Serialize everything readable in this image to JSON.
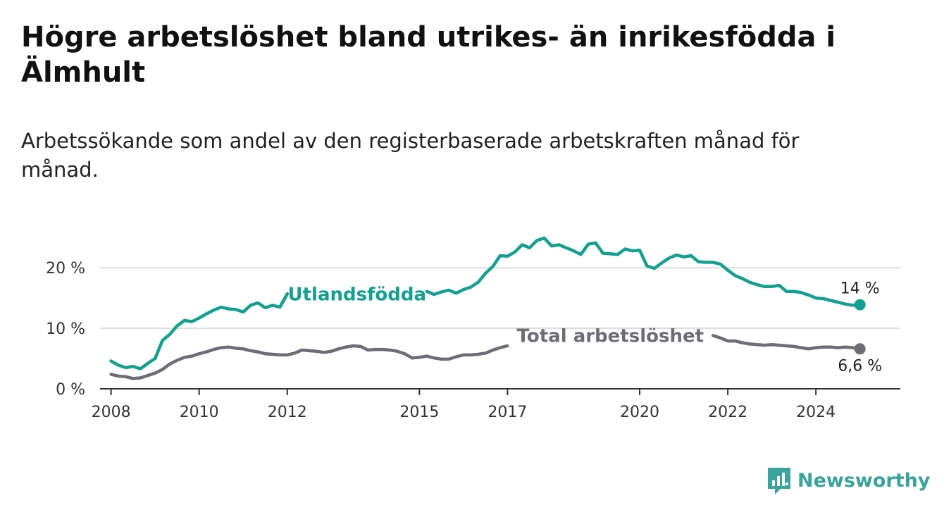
{
  "title": "Högre arbetslöshet bland utrikes- än inrikesfödda i Älmhult",
  "subtitle": "Arbetssökande som andel av den registerbaserade arbetskraften månad för månad.",
  "brand": "Newsworthy",
  "colors": {
    "utlandsfodda": "#12a090",
    "total": "#6e6c75",
    "axis": "#333333",
    "grid": "#dddddd",
    "brand": "#3aa39b"
  },
  "chart_data": {
    "type": "line",
    "x_ticks": [
      "2008",
      "2010",
      "2012",
      "2015",
      "2017",
      "2020",
      "2022",
      "2024"
    ],
    "y_ticks": [
      "0 %",
      "10 %",
      "20 %"
    ],
    "ylim": [
      0,
      27
    ],
    "xlim": [
      "2007-10",
      "2025-12"
    ],
    "grid": true,
    "series": [
      {
        "name": "Utlandsfödda",
        "end_label": "14 %",
        "points": [
          [
            "2008-01",
            4.6
          ],
          [
            "2008-03",
            3.9
          ],
          [
            "2008-05",
            3.5
          ],
          [
            "2008-07",
            3.7
          ],
          [
            "2008-09",
            3.3
          ],
          [
            "2008-11",
            4.2
          ],
          [
            "2009-01",
            5.0
          ],
          [
            "2009-03",
            8.0
          ],
          [
            "2009-05",
            9.0
          ],
          [
            "2009-07",
            10.4
          ],
          [
            "2009-09",
            11.3
          ],
          [
            "2009-11",
            11.1
          ],
          [
            "2010-01",
            11.7
          ],
          [
            "2010-03",
            12.4
          ],
          [
            "2010-05",
            13.0
          ],
          [
            "2010-07",
            13.5
          ],
          [
            "2010-09",
            13.2
          ],
          [
            "2010-11",
            13.1
          ],
          [
            "2011-01",
            12.7
          ],
          [
            "2011-03",
            13.8
          ],
          [
            "2011-05",
            14.2
          ],
          [
            "2011-07",
            13.4
          ],
          [
            "2011-09",
            13.8
          ],
          [
            "2011-11",
            13.5
          ],
          [
            "2012-01",
            15.7
          ],
          [
            "2015-03",
            16.1
          ],
          [
            "2015-05",
            15.6
          ],
          [
            "2015-07",
            16.0
          ],
          [
            "2015-09",
            16.3
          ],
          [
            "2015-11",
            15.8
          ],
          [
            "2016-01",
            16.4
          ],
          [
            "2016-03",
            16.8
          ],
          [
            "2016-05",
            17.6
          ],
          [
            "2016-07",
            19.1
          ],
          [
            "2016-09",
            20.2
          ],
          [
            "2016-11",
            22.0
          ],
          [
            "2017-01",
            21.9
          ],
          [
            "2017-03",
            22.6
          ],
          [
            "2017-05",
            23.8
          ],
          [
            "2017-07",
            23.3
          ],
          [
            "2017-09",
            24.5
          ],
          [
            "2017-11",
            24.9
          ],
          [
            "2018-01",
            23.6
          ],
          [
            "2018-03",
            23.8
          ],
          [
            "2018-05",
            23.3
          ],
          [
            "2018-07",
            22.8
          ],
          [
            "2018-09",
            22.2
          ],
          [
            "2018-11",
            23.9
          ],
          [
            "2019-01",
            24.1
          ],
          [
            "2019-03",
            22.4
          ],
          [
            "2019-05",
            22.3
          ],
          [
            "2019-07",
            22.2
          ],
          [
            "2019-09",
            23.1
          ],
          [
            "2019-11",
            22.8
          ],
          [
            "2020-01",
            22.9
          ],
          [
            "2020-03",
            20.3
          ],
          [
            "2020-05",
            19.9
          ],
          [
            "2020-07",
            20.8
          ],
          [
            "2020-09",
            21.6
          ],
          [
            "2020-11",
            22.1
          ],
          [
            "2021-01",
            21.8
          ],
          [
            "2021-03",
            22.0
          ],
          [
            "2021-05",
            21.0
          ],
          [
            "2021-07",
            20.9
          ],
          [
            "2021-09",
            20.9
          ],
          [
            "2021-11",
            20.6
          ],
          [
            "2022-01",
            19.6
          ],
          [
            "2022-03",
            18.7
          ],
          [
            "2022-05",
            18.2
          ],
          [
            "2022-07",
            17.6
          ],
          [
            "2022-09",
            17.2
          ],
          [
            "2022-11",
            16.9
          ],
          [
            "2023-01",
            16.9
          ],
          [
            "2023-03",
            17.1
          ],
          [
            "2023-05",
            16.1
          ],
          [
            "2023-07",
            16.1
          ],
          [
            "2023-09",
            15.9
          ],
          [
            "2023-11",
            15.5
          ],
          [
            "2024-01",
            15.0
          ],
          [
            "2024-03",
            14.9
          ],
          [
            "2024-05",
            14.6
          ],
          [
            "2024-07",
            14.3
          ],
          [
            "2024-09",
            14.0
          ],
          [
            "2024-11",
            13.8
          ],
          [
            "2025-01",
            13.9
          ]
        ]
      },
      {
        "name": "Total arbetslöshet",
        "end_label": "6,6 %",
        "points": [
          [
            "2008-01",
            2.4
          ],
          [
            "2008-03",
            2.1
          ],
          [
            "2008-05",
            2.0
          ],
          [
            "2008-07",
            1.7
          ],
          [
            "2008-09",
            1.8
          ],
          [
            "2008-11",
            2.2
          ],
          [
            "2009-01",
            2.6
          ],
          [
            "2009-03",
            3.2
          ],
          [
            "2009-05",
            4.1
          ],
          [
            "2009-07",
            4.7
          ],
          [
            "2009-09",
            5.2
          ],
          [
            "2009-11",
            5.4
          ],
          [
            "2010-01",
            5.8
          ],
          [
            "2010-03",
            6.1
          ],
          [
            "2010-05",
            6.5
          ],
          [
            "2010-07",
            6.8
          ],
          [
            "2010-09",
            6.9
          ],
          [
            "2010-11",
            6.7
          ],
          [
            "2011-01",
            6.6
          ],
          [
            "2011-03",
            6.3
          ],
          [
            "2011-05",
            6.1
          ],
          [
            "2011-07",
            5.8
          ],
          [
            "2011-09",
            5.7
          ],
          [
            "2011-11",
            5.6
          ],
          [
            "2012-01",
            5.6
          ],
          [
            "2012-03",
            5.9
          ],
          [
            "2012-05",
            6.4
          ],
          [
            "2012-07",
            6.3
          ],
          [
            "2012-09",
            6.2
          ],
          [
            "2012-11",
            6.0
          ],
          [
            "2013-01",
            6.2
          ],
          [
            "2013-03",
            6.6
          ],
          [
            "2013-05",
            6.9
          ],
          [
            "2013-07",
            7.1
          ],
          [
            "2013-09",
            7.0
          ],
          [
            "2013-11",
            6.4
          ],
          [
            "2014-01",
            6.5
          ],
          [
            "2014-03",
            6.5
          ],
          [
            "2014-05",
            6.4
          ],
          [
            "2014-07",
            6.2
          ],
          [
            "2014-09",
            5.8
          ],
          [
            "2014-11",
            5.1
          ],
          [
            "2015-01",
            5.2
          ],
          [
            "2015-03",
            5.4
          ],
          [
            "2015-05",
            5.1
          ],
          [
            "2015-07",
            4.9
          ],
          [
            "2015-09",
            4.9
          ],
          [
            "2015-11",
            5.3
          ],
          [
            "2016-01",
            5.6
          ],
          [
            "2016-03",
            5.6
          ],
          [
            "2016-05",
            5.7
          ],
          [
            "2016-07",
            5.9
          ],
          [
            "2016-09",
            6.4
          ],
          [
            "2016-11",
            6.8
          ],
          [
            "2017-01",
            7.1
          ],
          [
            "2021-09",
            8.8
          ],
          [
            "2021-11",
            8.4
          ],
          [
            "2022-01",
            7.9
          ],
          [
            "2022-03",
            7.9
          ],
          [
            "2022-05",
            7.6
          ],
          [
            "2022-07",
            7.4
          ],
          [
            "2022-09",
            7.3
          ],
          [
            "2022-11",
            7.2
          ],
          [
            "2023-01",
            7.3
          ],
          [
            "2023-03",
            7.2
          ],
          [
            "2023-05",
            7.1
          ],
          [
            "2023-07",
            7.0
          ],
          [
            "2023-09",
            6.8
          ],
          [
            "2023-11",
            6.6
          ],
          [
            "2024-01",
            6.8
          ],
          [
            "2024-03",
            6.9
          ],
          [
            "2024-05",
            6.9
          ],
          [
            "2024-07",
            6.8
          ],
          [
            "2024-09",
            6.9
          ],
          [
            "2024-11",
            6.8
          ],
          [
            "2025-01",
            6.6
          ]
        ]
      }
    ]
  }
}
